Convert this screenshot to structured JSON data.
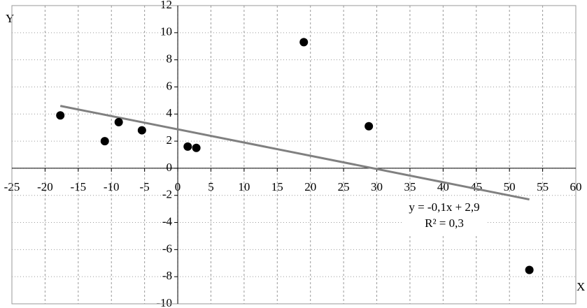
{
  "chart_data": {
    "type": "scatter",
    "x_label": "X",
    "y_label": "Y",
    "x": [
      -17.7,
      -11,
      -8.9,
      -5.4,
      1.5,
      2.8,
      19,
      28.8,
      53
    ],
    "values": [
      3.9,
      2.0,
      3.4,
      2.8,
      1.6,
      1.5,
      9.3,
      3.1,
      -7.5
    ],
    "color": "#000000",
    "xlim": [
      -25,
      60
    ],
    "xticks": [
      -25,
      -20,
      -15,
      -10,
      -5,
      0,
      5,
      10,
      15,
      20,
      25,
      30,
      35,
      40,
      45,
      50,
      55,
      60
    ],
    "ylim": [
      -10,
      12
    ],
    "yticks": [
      -10,
      -8,
      -6,
      -4,
      -2,
      0,
      2,
      4,
      6,
      8,
      10,
      12
    ],
    "grid": true,
    "trendline": {
      "x": [
        -17.7,
        53
      ],
      "y": [
        4.6,
        -2.3
      ],
      "color": "#808080",
      "equation": "y = -0,1x + 2,9",
      "r2": "R² = 0,3"
    }
  }
}
